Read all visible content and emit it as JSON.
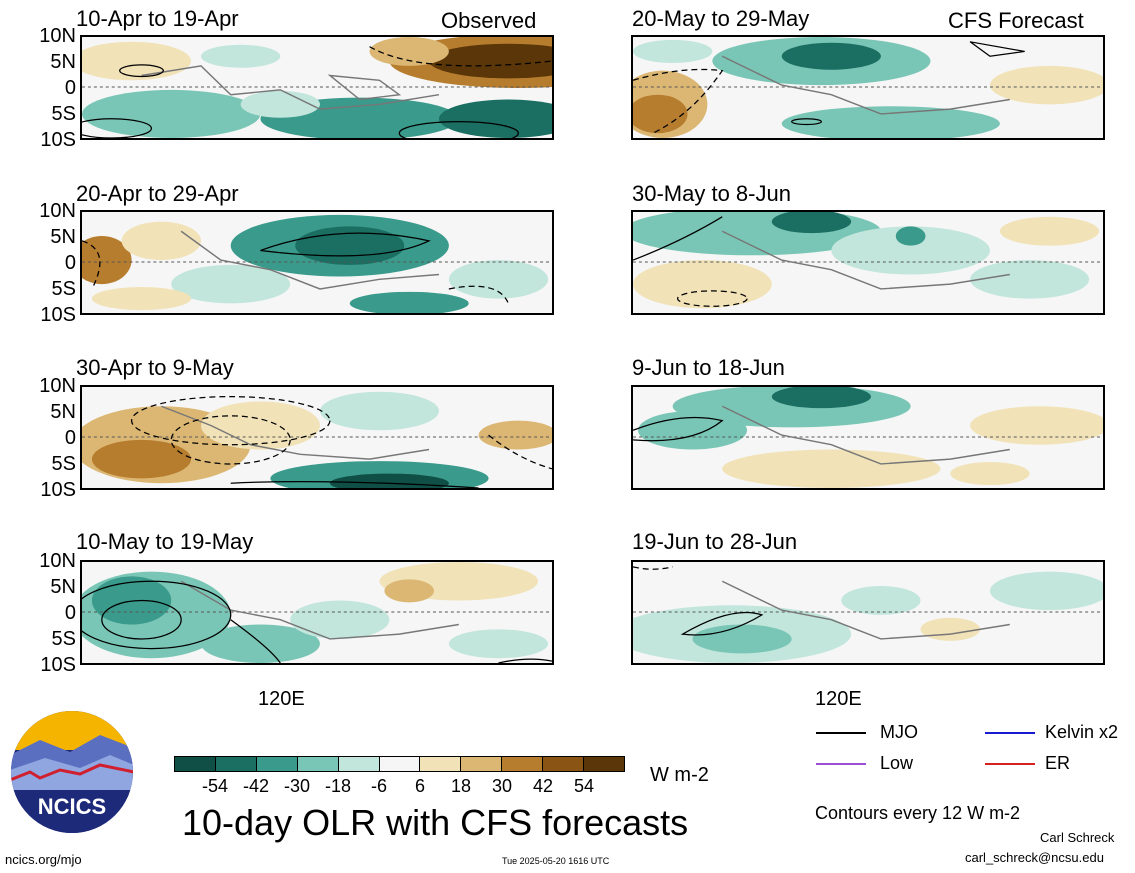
{
  "panels_left": [
    {
      "title": "10-Apr to 19-Apr",
      "corner": "Observed"
    },
    {
      "title": "20-Apr to 29-Apr",
      "corner": ""
    },
    {
      "title": "30-Apr to 9-May",
      "corner": ""
    },
    {
      "title": "10-May to 19-May",
      "corner": ""
    }
  ],
  "panels_right": [
    {
      "title": "20-May to 29-May",
      "corner": "CFS Forecast"
    },
    {
      "title": "30-May to 8-Jun",
      "corner": ""
    },
    {
      "title": "9-Jun to 18-Jun",
      "corner": ""
    },
    {
      "title": "19-Jun to 28-Jun",
      "corner": ""
    }
  ],
  "lat_labels": [
    "10N",
    "5N",
    "0",
    "5S",
    "10S"
  ],
  "lon_label": "120E",
  "colorbar": {
    "ticks": [
      "-54",
      "-42",
      "-30",
      "-18",
      "-6",
      "6",
      "18",
      "30",
      "42",
      "54"
    ],
    "colors": [
      "#0f4f45",
      "#1b6e62",
      "#3a9a8b",
      "#7ac6b6",
      "#c2e6dc",
      "#f6f6f6",
      "#f1e2b8",
      "#dcb774",
      "#b77d2e",
      "#8a5514",
      "#5a3608"
    ],
    "units": "W m-2"
  },
  "title": "10-day OLR with CFS forecasts",
  "legend": {
    "mjo": "MJO",
    "kelvin": "Kelvin x2",
    "low": "Low",
    "er": "ER",
    "colors": {
      "mjo": "#000000",
      "kelvin": "#1a1ad0",
      "low": "#9b4fd6",
      "er": "#d62020"
    }
  },
  "contours_note": "Contours every 12 W m-2",
  "author": "Carl Schreck",
  "email": "carl_schreck@ncsu.edu",
  "url": "ncics.org/mjo",
  "timestamp": "Tue 2025-05-20 1616 UTC",
  "logo_text": "NCICS"
}
